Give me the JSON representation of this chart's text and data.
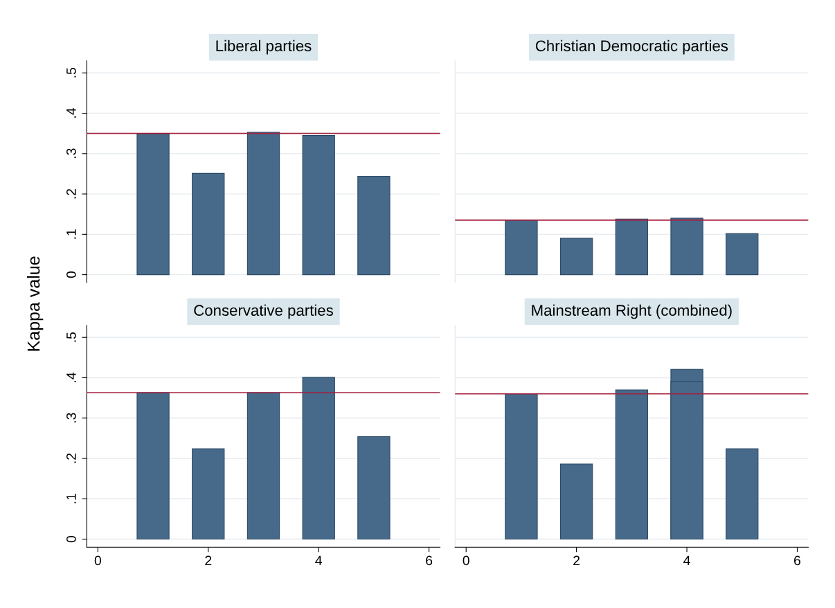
{
  "chart_data": [
    {
      "type": "bar",
      "title": "Liberal parties",
      "ylabel": "Kappa value",
      "x": [
        1,
        2,
        3,
        4,
        5
      ],
      "series": [
        {
          "color": "#476a8a",
          "values": [
            0.35,
            0.251,
            0.353,
            0.345,
            0.244
          ]
        }
      ],
      "xlim": [
        -0.2,
        6.2
      ],
      "xticks": [
        0,
        2,
        4,
        6
      ],
      "ylim": [
        -0.02,
        0.53
      ],
      "yticks": [
        0,
        {
          "value": 0.1,
          "label": ".1"
        },
        {
          "value": 0.2,
          "label": ".2"
        },
        {
          "value": 0.3,
          "label": ".3"
        },
        {
          "value": 0.4,
          "label": ".4"
        },
        {
          "value": 0.5,
          "label": ".5"
        }
      ],
      "grid": "y",
      "tick_labels": "y",
      "ref_lines": [
        {
          "axis": "y",
          "value": 0.35,
          "color": "#a3203f"
        }
      ]
    },
    {
      "type": "bar",
      "title": "Christian Democratic parties",
      "x": [
        1,
        2,
        3,
        4,
        5
      ],
      "series": [
        {
          "color": "#476a8a",
          "values": [
            0.135,
            0.09,
            0.138,
            0.14,
            0.102
          ]
        }
      ],
      "xlim": [
        -0.2,
        6.2
      ],
      "xticks": [
        0,
        2,
        4,
        6
      ],
      "ylim": [
        -0.02,
        0.53
      ],
      "yticks": [
        {
          "value": 0,
          "label": null
        },
        {
          "value": 0.1,
          "label": null
        },
        {
          "value": 0.2,
          "label": null
        },
        {
          "value": 0.3,
          "label": null
        },
        {
          "value": 0.4,
          "label": null
        },
        {
          "value": 0.5,
          "label": null
        }
      ],
      "grid": "y",
      "tick_labels": false,
      "ref_lines": [
        {
          "axis": "y",
          "value": 0.135,
          "color": "#a3203f"
        }
      ]
    },
    {
      "type": "bar",
      "title": "Conservative parties",
      "x": [
        1,
        2,
        3,
        4,
        5
      ],
      "series": [
        {
          "color": "#476a8a",
          "values": [
            0.363,
            0.224,
            0.363,
            0.401,
            0.254
          ]
        }
      ],
      "xlim": [
        -0.2,
        6.2
      ],
      "xticks": [
        0,
        2,
        4,
        6
      ],
      "ylim": [
        -0.02,
        0.53
      ],
      "yticks": [
        0,
        {
          "value": 0.1,
          "label": ".1"
        },
        {
          "value": 0.2,
          "label": ".2"
        },
        {
          "value": 0.3,
          "label": ".3"
        },
        {
          "value": 0.4,
          "label": ".4"
        },
        {
          "value": 0.5,
          "label": ".5"
        }
      ],
      "grid": "y",
      "ref_lines": [
        {
          "axis": "y",
          "value": 0.363,
          "color": "#a3203f"
        }
      ]
    },
    {
      "type": "bar",
      "title": "Mainstream Right (combined)",
      "x": [
        1,
        2,
        3,
        4,
        5
      ],
      "series": [
        {
          "color": "#476a8a",
          "values": [
            0.36,
            0.186,
            0.37,
            0.421,
            0.224
          ]
        },
        {
          "color": "#476a8a",
          "x": [
            4
          ],
          "values": [
            0.391
          ]
        }
      ],
      "xlim": [
        -0.2,
        6.2
      ],
      "xticks": [
        0,
        2,
        4,
        6
      ],
      "ylim": [
        -0.02,
        0.53
      ],
      "yticks": [
        {
          "value": 0,
          "label": null
        },
        {
          "value": 0.1,
          "label": null
        },
        {
          "value": 0.2,
          "label": null
        },
        {
          "value": 0.3,
          "label": null
        },
        {
          "value": 0.4,
          "label": null
        },
        {
          "value": 0.5,
          "label": null
        }
      ],
      "grid": "y",
      "tick_labels": "x",
      "ref_lines": [
        {
          "axis": "y",
          "value": 0.36,
          "color": "#a3203f"
        }
      ]
    }
  ]
}
